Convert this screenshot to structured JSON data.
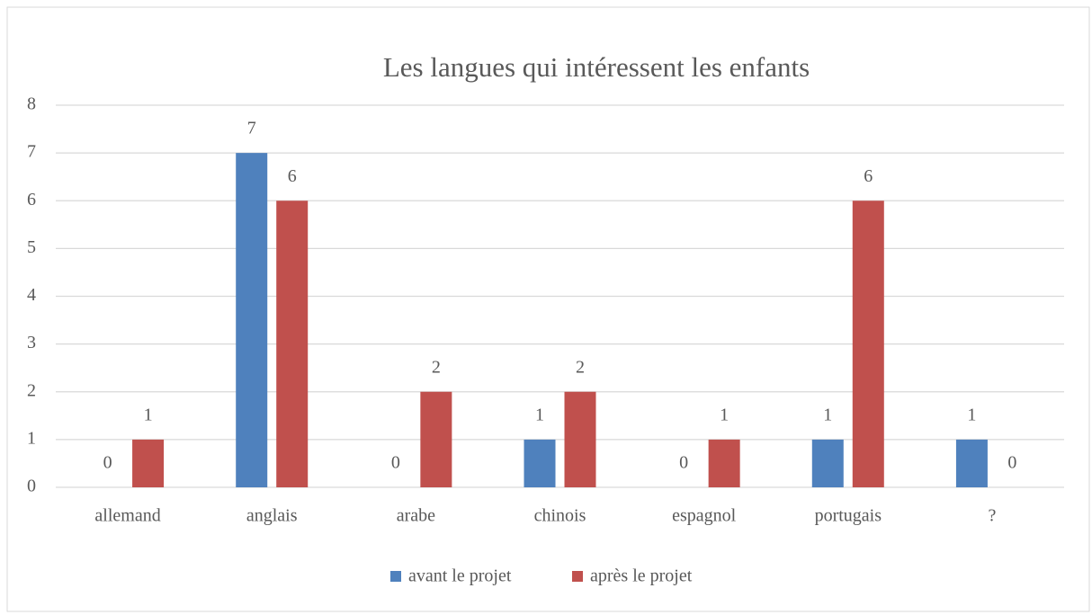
{
  "chart_data": {
    "type": "bar",
    "title": "Les langues qui intéressent les enfants",
    "categories": [
      "allemand",
      "anglais",
      "arabe",
      "chinois",
      "espagnol",
      "portugais",
      "?"
    ],
    "series": [
      {
        "name": "avant le projet",
        "color": "#4f81bd",
        "values": [
          0,
          7,
          0,
          1,
          0,
          1,
          1
        ]
      },
      {
        "name": "après le projet",
        "color": "#c0504d",
        "values": [
          1,
          6,
          2,
          2,
          1,
          6,
          0
        ]
      }
    ],
    "ylim": [
      0,
      8
    ],
    "yticks": [
      0,
      1,
      2,
      3,
      4,
      5,
      6,
      7,
      8
    ],
    "grid": true,
    "legend": "bottom"
  }
}
